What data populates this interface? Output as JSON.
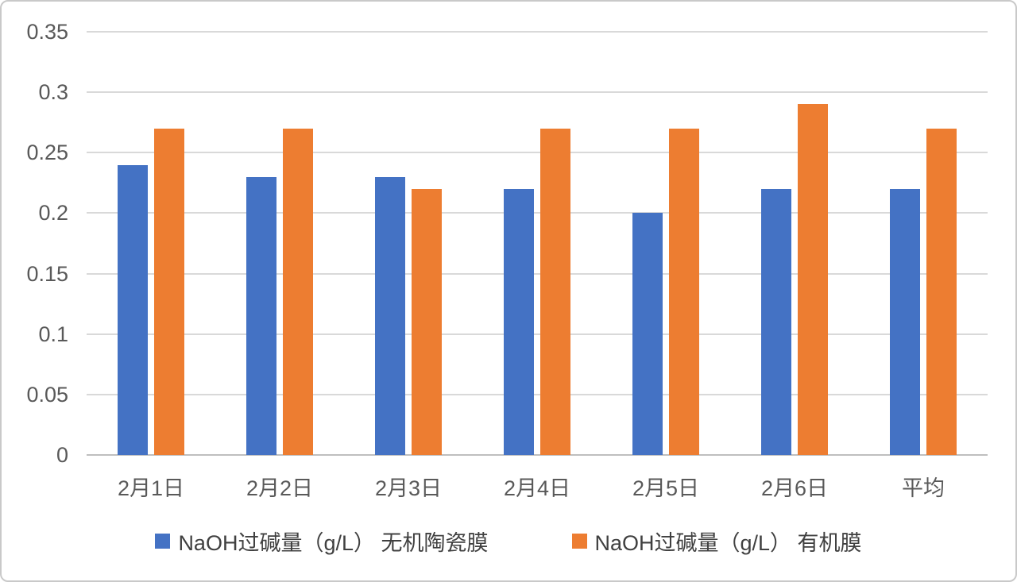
{
  "chart_data": {
    "type": "bar",
    "title": "",
    "xlabel": "",
    "ylabel": "",
    "categories": [
      "2月1日",
      "2月2日",
      "2月3日",
      "2月4日",
      "2月5日",
      "2月6日",
      "平均"
    ],
    "series": [
      {
        "name": "NaOH过碱量（g/L） 无机陶瓷膜",
        "color": "#4472C4",
        "values": [
          0.24,
          0.23,
          0.23,
          0.22,
          0.2,
          0.22,
          0.22
        ]
      },
      {
        "name": "NaOH过碱量（g/L） 有机膜",
        "color": "#ED7D31",
        "values": [
          0.27,
          0.27,
          0.22,
          0.27,
          0.27,
          0.29,
          0.27
        ]
      }
    ],
    "ylim": [
      0,
      0.35
    ],
    "ytick_step": 0.05,
    "ytick_labels": [
      "0",
      "0.05",
      "0.1",
      "0.15",
      "0.2",
      "0.25",
      "0.3",
      "0.35"
    ],
    "grid": true,
    "legend_position": "bottom"
  },
  "colors": {
    "background": "#FFFFFF",
    "card_border": "#C9C9C9",
    "gridline": "#D9D9D9",
    "axis_line": "#BFBFBF",
    "tick_text": "#595959",
    "legend_text": "#404040"
  }
}
